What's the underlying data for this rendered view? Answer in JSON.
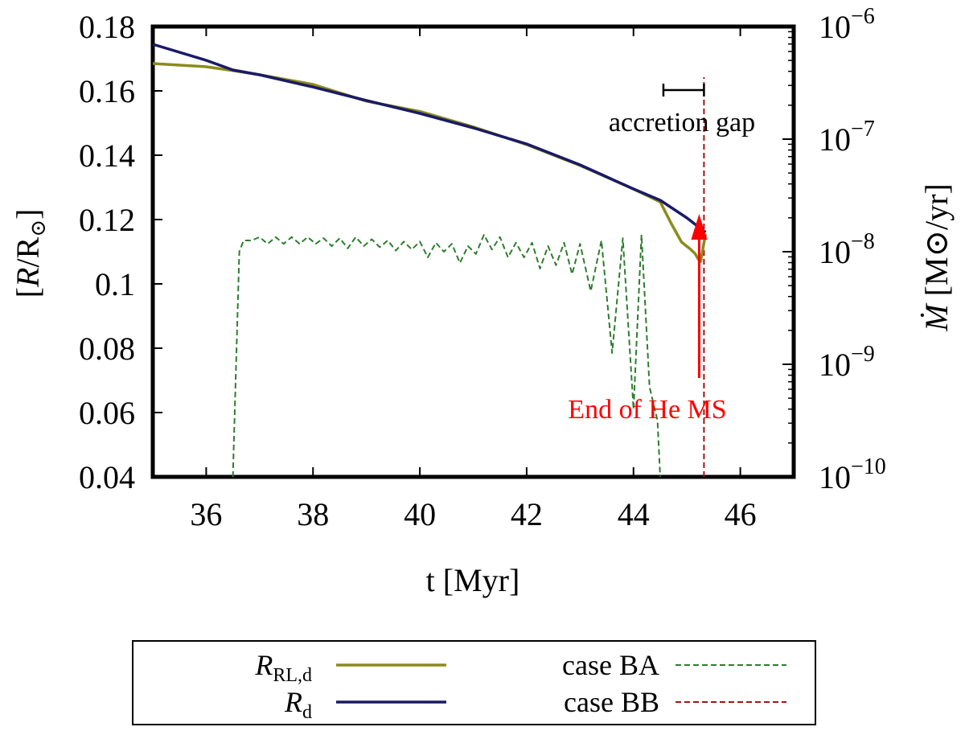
{
  "chart_data": {
    "type": "line",
    "title": "",
    "xlabel": "t [Myr]",
    "ylabel_left": "[R/R⊙]",
    "ylabel_left_parts": {
      "open": "[",
      "var": "R",
      "slash": "/R",
      "sun": "⊙",
      "close": "]"
    },
    "ylabel_right": "Ṁ [M⊙/yr]",
    "ylabel_right_parts": {
      "var": "Ṁ",
      "rest": " [M⊙/yr]"
    },
    "xlim": [
      35,
      47
    ],
    "ylim_left": [
      0.04,
      0.18
    ],
    "ylim_right_log10": [
      -10,
      -6
    ],
    "x_ticks": [
      36,
      38,
      40,
      42,
      44,
      46
    ],
    "x_tick_labels": [
      "36",
      "38",
      "40",
      "42",
      "44",
      "46"
    ],
    "y_left_ticks": [
      0.04,
      0.06,
      0.08,
      0.1,
      0.12,
      0.14,
      0.16,
      0.18
    ],
    "y_left_tick_labels": [
      "0.04",
      "0.06",
      "0.08",
      "0.1",
      "0.12",
      "0.14",
      "0.16",
      "0.18"
    ],
    "y_right_ticks": [
      -10,
      -9,
      -8,
      -7,
      -6
    ],
    "y_right_tick_labels": [
      {
        "base": "10",
        "exp": "−10"
      },
      {
        "base": "10",
        "exp": "−9"
      },
      {
        "base": "10",
        "exp": "−8"
      },
      {
        "base": "10",
        "exp": "−7"
      },
      {
        "base": "10",
        "exp": "−6"
      }
    ],
    "series": [
      {
        "name": "R_RL,d",
        "label_main": "R",
        "label_sub": "RL,d",
        "axis": "left",
        "color": "#8b8b1a",
        "dash": false,
        "x": [
          35.0,
          36.0,
          36.5,
          37.0,
          38.0,
          39.0,
          40.0,
          41.0,
          42.0,
          43.0,
          44.0,
          44.5,
          44.7,
          44.9,
          45.05,
          45.15,
          45.22,
          45.26,
          45.3,
          45.35
        ],
        "y": [
          0.1685,
          0.1675,
          0.1663,
          0.165,
          0.162,
          0.1568,
          0.1536,
          0.1488,
          0.1433,
          0.1368,
          0.1295,
          0.1255,
          0.119,
          0.113,
          0.111,
          0.1095,
          0.1075,
          0.107,
          0.111,
          0.1155
        ]
      },
      {
        "name": "R_d",
        "label_main": "R",
        "label_sub": "d",
        "axis": "left",
        "color": "#1a1a66",
        "dash": false,
        "x": [
          35.0,
          36.0,
          36.5,
          37.0,
          38.0,
          39.0,
          40.0,
          41.0,
          42.0,
          43.0,
          44.0,
          44.5,
          45.0,
          45.35
        ],
        "y": [
          0.1745,
          0.1695,
          0.1665,
          0.165,
          0.1612,
          0.157,
          0.153,
          0.1485,
          0.1435,
          0.137,
          0.1295,
          0.126,
          0.1205,
          0.116
        ]
      },
      {
        "name": "case BA",
        "label_main": "case BA",
        "axis": "right",
        "color": "#2e7d2e",
        "dash": true,
        "x": [
          36.5,
          36.62,
          36.7,
          36.85,
          37.0,
          37.15,
          37.3,
          37.45,
          37.6,
          37.75,
          37.9,
          38.05,
          38.2,
          38.35,
          38.5,
          38.65,
          38.8,
          38.95,
          39.1,
          39.25,
          39.4,
          39.55,
          39.7,
          39.85,
          40.0,
          40.15,
          40.3,
          40.45,
          40.6,
          40.75,
          40.9,
          41.05,
          41.2,
          41.35,
          41.5,
          41.65,
          41.8,
          41.95,
          42.1,
          42.25,
          42.4,
          42.55,
          42.7,
          42.85,
          43.0,
          43.2,
          43.4,
          43.6,
          43.8,
          44.0,
          44.15,
          44.3,
          44.45,
          44.5
        ],
        "y": [
          -10.0,
          -8.0,
          -7.9,
          -7.9,
          -7.87,
          -7.93,
          -7.87,
          -7.93,
          -7.87,
          -7.93,
          -7.87,
          -7.93,
          -7.88,
          -7.95,
          -7.88,
          -7.97,
          -7.87,
          -7.95,
          -7.89,
          -7.96,
          -7.9,
          -7.99,
          -7.91,
          -7.98,
          -7.91,
          -8.05,
          -7.92,
          -8.0,
          -7.93,
          -8.1,
          -7.95,
          -8.02,
          -7.85,
          -7.98,
          -7.87,
          -8.05,
          -7.92,
          -8.05,
          -7.92,
          -8.15,
          -7.95,
          -8.12,
          -7.92,
          -8.2,
          -7.93,
          -8.35,
          -7.9,
          -8.9,
          -7.88,
          -9.4,
          -7.85,
          -9.2,
          -9.5,
          -10.0
        ]
      },
      {
        "name": "case BB",
        "label_main": "case BB",
        "axis": "right",
        "color": "#a01515",
        "dash": true,
        "x": [
          45.32,
          45.32
        ],
        "y": [
          -10.0,
          -6.45
        ]
      }
    ],
    "annotations": {
      "accretion_gap": "accretion gap",
      "accretion_gap_range": [
        44.5,
        45.35
      ],
      "end_he_ms": "End of He MS",
      "end_he_ms_x": 45.32,
      "end_he_ms_color": "#ff0000"
    },
    "legend_position": "bottom-outside"
  }
}
